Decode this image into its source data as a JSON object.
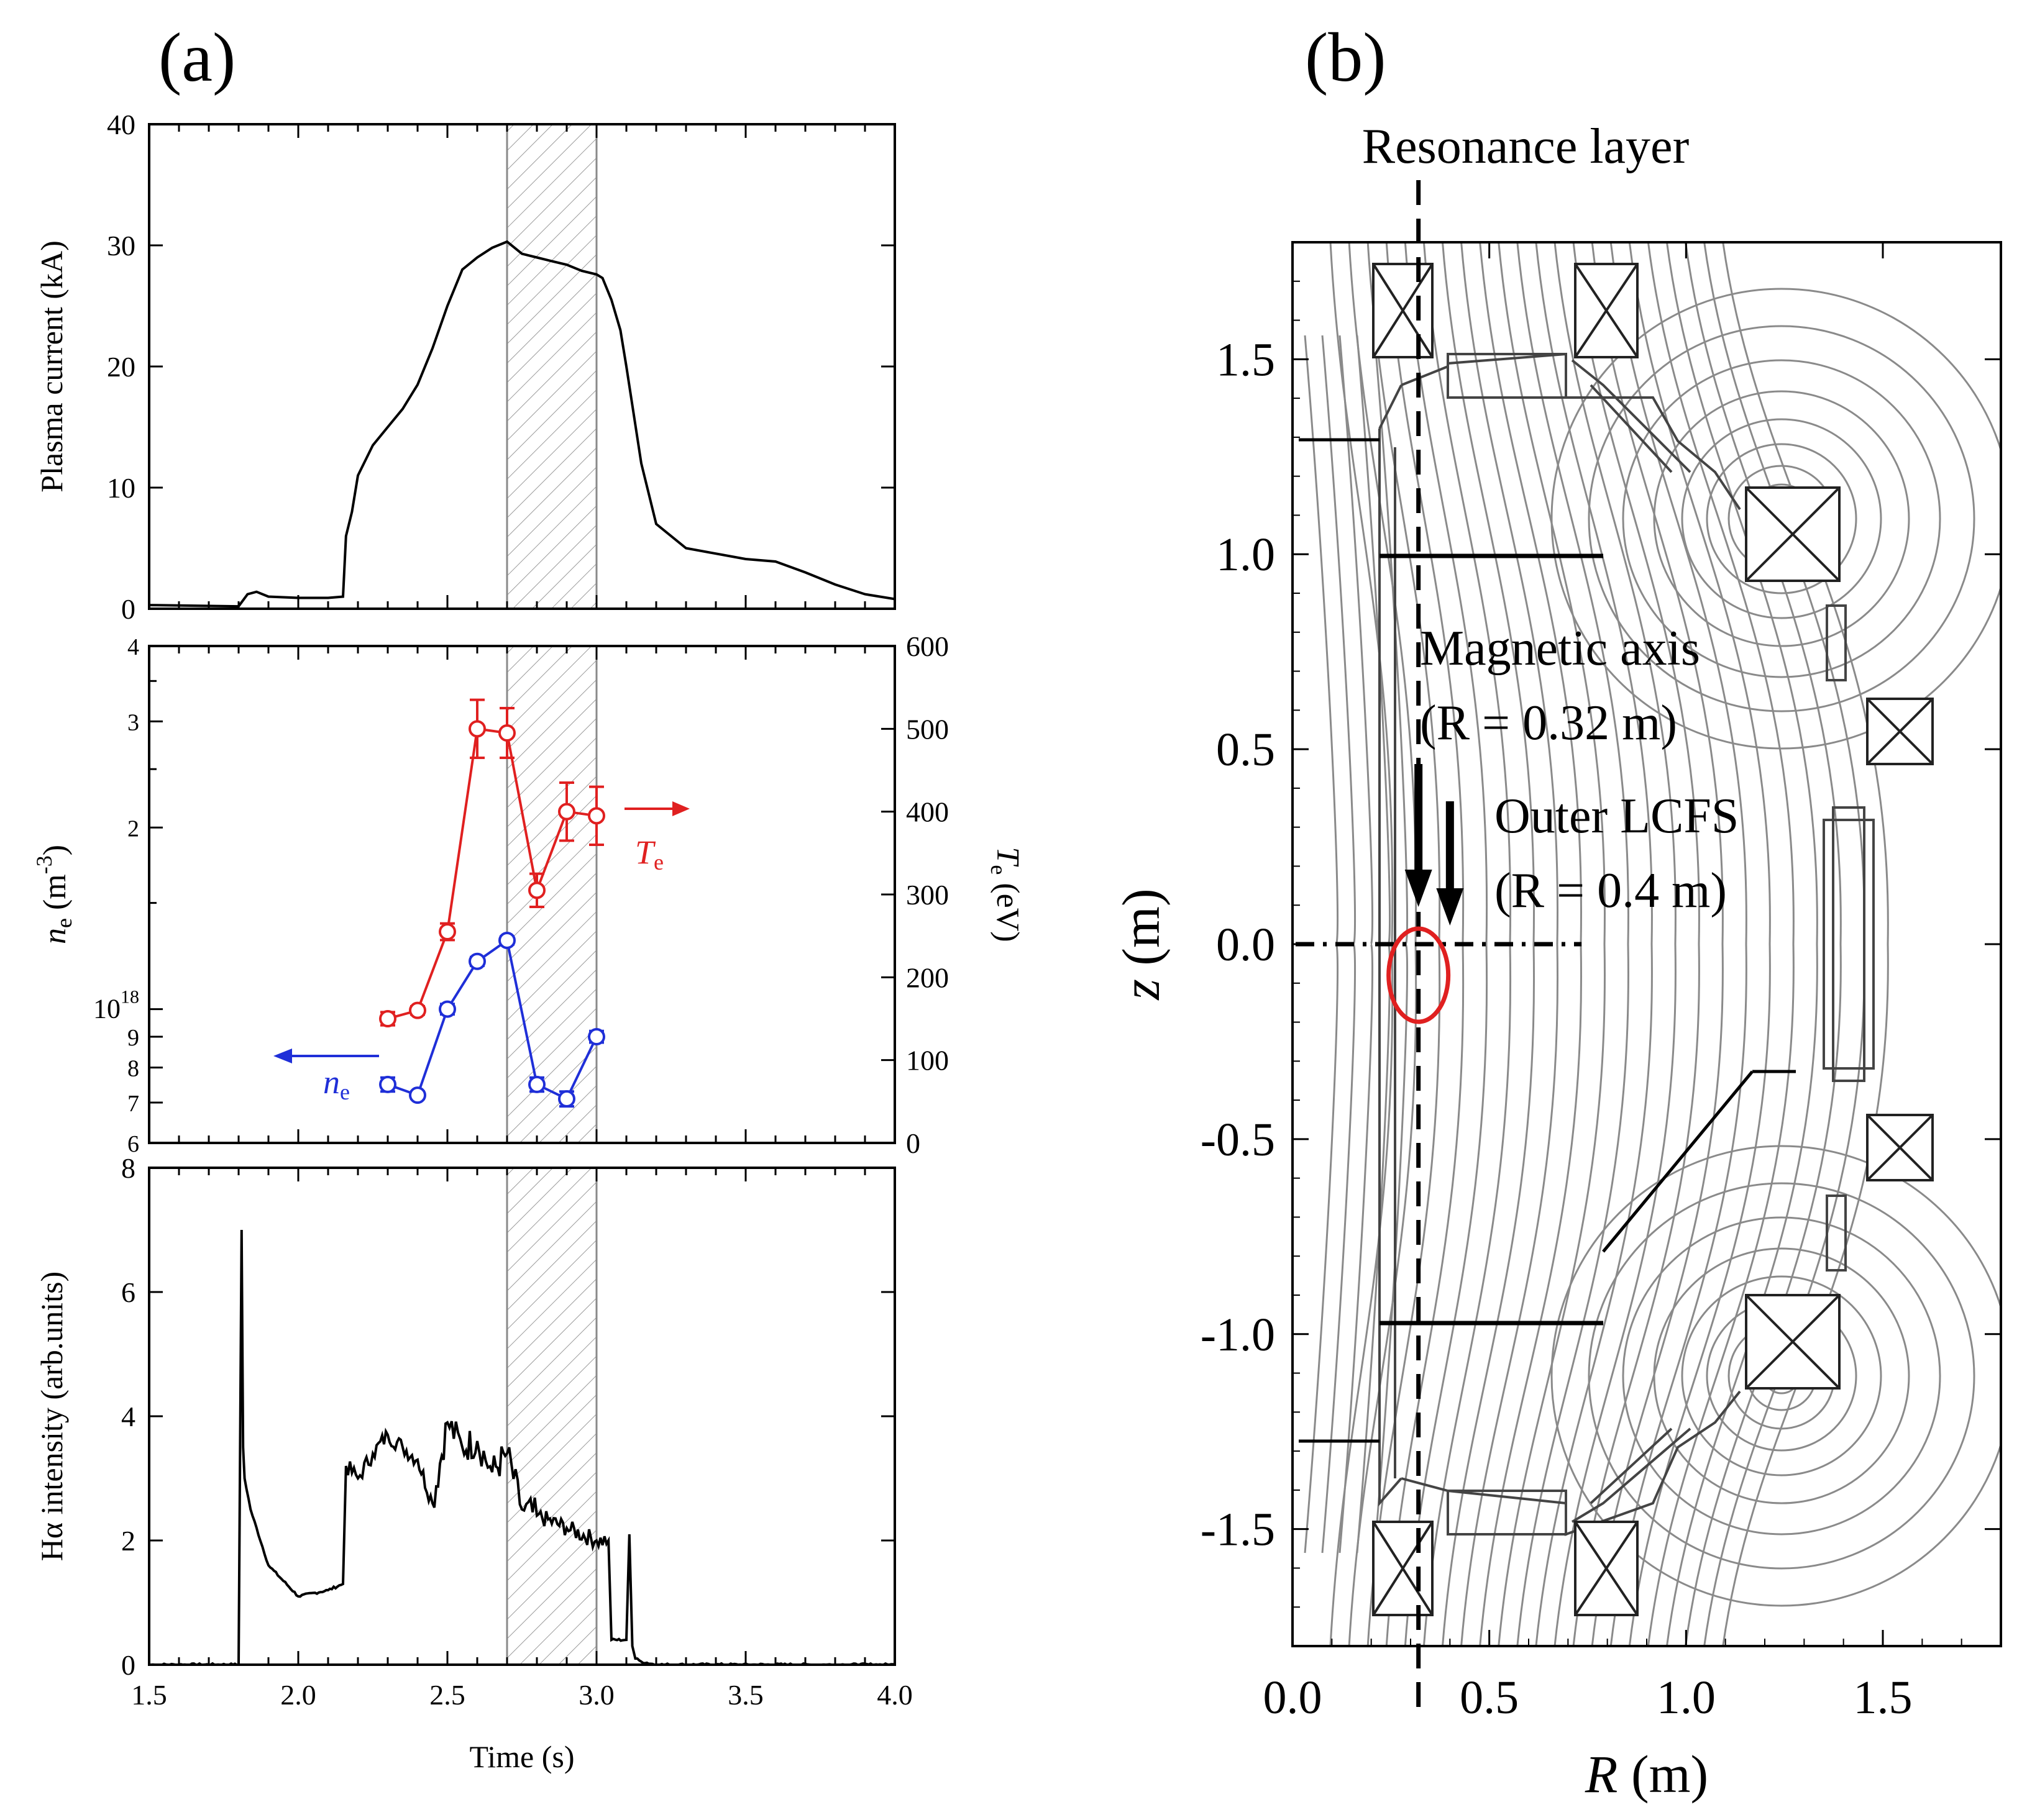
{
  "panel_a_label": "(a)",
  "panel_b_label": "(b)",
  "colors": {
    "red": "#e02020",
    "blue": "#1f2fd8",
    "grey": "#8a8a8a",
    "hatch": "#9a9a9a"
  },
  "chart_data": [
    {
      "type": "line",
      "name": "plasma-current",
      "ylabel": "Plasma current (kA)",
      "xlim": [
        1.5,
        4.0
      ],
      "ylim": [
        0,
        40
      ],
      "yticks": [
        "0",
        "10",
        "20",
        "30",
        "40"
      ],
      "shaded_interval": [
        2.7,
        3.0
      ],
      "x": [
        1.5,
        1.8,
        1.83,
        1.86,
        1.9,
        2.0,
        2.1,
        2.15,
        2.16,
        2.18,
        2.2,
        2.25,
        2.3,
        2.35,
        2.4,
        2.45,
        2.5,
        2.55,
        2.6,
        2.65,
        2.7,
        2.75,
        2.8,
        2.85,
        2.9,
        2.95,
        3.0,
        3.02,
        3.05,
        3.08,
        3.1,
        3.15,
        3.2,
        3.3,
        3.5,
        3.6,
        3.7,
        3.8,
        3.9,
        4.0
      ],
      "values": [
        0.3,
        0.2,
        1.2,
        1.4,
        1.0,
        0.9,
        0.9,
        1.0,
        6.0,
        8.0,
        11.0,
        13.5,
        15.0,
        16.5,
        18.5,
        21.5,
        25.0,
        28.0,
        29.0,
        29.8,
        30.3,
        29.3,
        29.0,
        28.7,
        28.4,
        27.9,
        27.6,
        27.3,
        25.5,
        23.0,
        20.0,
        12.0,
        7.0,
        5.0,
        4.1,
        3.9,
        3.0,
        2.0,
        1.2,
        0.8
      ]
    },
    {
      "type": "line",
      "name": "density-temperature",
      "ylabel_left": "ne (m⁻³)",
      "ylabel_right": "Te (eV)",
      "xlim": [
        1.5,
        4.0
      ],
      "ylim_left": [
        0.6,
        4.0
      ],
      "ylim_right": [
        0,
        600
      ],
      "yscale_left": "log",
      "left_tick_labels": [
        "6",
        "7",
        "8",
        "9",
        "10¹⁸",
        "2",
        "3",
        "4"
      ],
      "right_tick_labels": [
        "0",
        "100",
        "200",
        "300",
        "400",
        "500",
        "600"
      ],
      "shaded_interval": [
        2.7,
        3.0
      ],
      "series": [
        {
          "name": "Te",
          "axis": "right",
          "x": [
            2.3,
            2.4,
            2.5,
            2.6,
            2.7,
            2.8,
            2.9,
            3.0
          ],
          "values": [
            150,
            160,
            255,
            500,
            495,
            305,
            400,
            395
          ],
          "errors": [
            8,
            5,
            10,
            35,
            30,
            20,
            35,
            35
          ]
        },
        {
          "name": "ne",
          "axis": "left",
          "x": [
            2.3,
            2.4,
            2.5,
            2.6,
            2.7,
            2.8,
            2.9,
            3.0
          ],
          "values": [
            0.75,
            0.72,
            1.0,
            1.2,
            1.3,
            0.75,
            0.71,
            0.9
          ],
          "errors": [
            0.02,
            0.01,
            0.02,
            0.02,
            0.02,
            0.02,
            0.02,
            0.02
          ]
        }
      ],
      "annotations": {
        "te_label": "T",
        "te_sub": "e",
        "ne_label": "n",
        "ne_sub": "e"
      }
    },
    {
      "type": "line",
      "name": "h-alpha",
      "ylabel": "Hα intensity (arb.units)",
      "xlabel": "Time (s)",
      "xlim": [
        1.5,
        4.0
      ],
      "ylim": [
        0,
        8
      ],
      "xticks": [
        "1.5",
        "2.0",
        "2.5",
        "3.0",
        "3.5",
        "4.0"
      ],
      "yticks": [
        "0",
        "2",
        "4",
        "6",
        "8"
      ],
      "shaded_interval": [
        2.7,
        3.0
      ],
      "x": [
        1.5,
        1.8,
        1.81,
        1.815,
        1.82,
        1.84,
        1.9,
        2.0,
        2.1,
        2.15,
        2.16,
        2.2,
        2.25,
        2.3,
        2.35,
        2.4,
        2.45,
        2.5,
        2.55,
        2.6,
        2.65,
        2.7,
        2.75,
        2.8,
        2.9,
        3.0,
        3.04,
        3.05,
        3.1,
        3.11,
        3.12,
        3.13,
        3.15,
        3.2,
        4.0
      ],
      "values": [
        0.0,
        0.0,
        7.0,
        3.5,
        3.0,
        2.5,
        1.6,
        1.1,
        1.2,
        1.3,
        3.2,
        3.0,
        3.4,
        3.7,
        3.5,
        3.3,
        2.6,
        3.9,
        3.5,
        3.6,
        3.1,
        3.4,
        2.5,
        2.4,
        2.2,
        2.0,
        2.0,
        0.4,
        0.4,
        2.1,
        0.3,
        0.1,
        0.05,
        0.0,
        0.0
      ]
    },
    {
      "type": "diagram",
      "name": "equilibrium",
      "xlabel": "R (m)",
      "xlabel_var": "R",
      "xlabel_unit": "(m)",
      "ylabel": "z (m)",
      "ylabel_var": "z",
      "ylabel_unit": "(m)",
      "xlim": [
        0.0,
        1.8
      ],
      "ylim": [
        -1.8,
        1.8
      ],
      "xticks": [
        "0.0",
        "0.5",
        "1.0",
        "1.5"
      ],
      "yticks": [
        "1.5",
        "1.0",
        "0.5",
        "0.0",
        "-0.5",
        "-1.0",
        "-1.5"
      ],
      "resonance_label": "Resonance layer",
      "resonance_R": 0.32,
      "magnetic_axis_label": "Magnetic axis",
      "magnetic_axis_eq": "(R = 0.32 m)",
      "magnetic_axis_R": 0.32,
      "lcfs_label": "Outer LCFS",
      "lcfs_eq": "(R = 0.4 m)",
      "lcfs_R": 0.4
    }
  ]
}
